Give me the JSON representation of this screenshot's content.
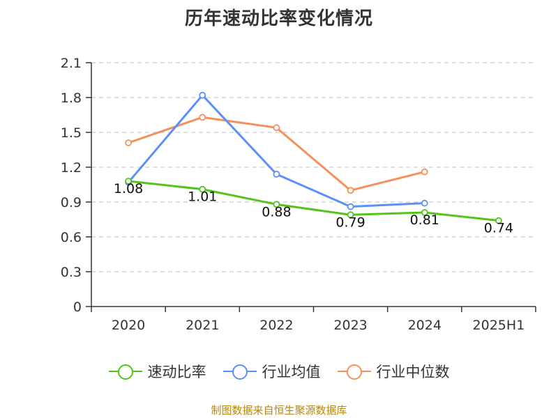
{
  "chart_data": {
    "type": "line",
    "title": "历年速动比率变化情况",
    "categories": [
      "2020",
      "2021",
      "2022",
      "2023",
      "2024",
      "2025H1"
    ],
    "series": [
      {
        "name": "速动比率",
        "color": "#52c41a",
        "values": [
          1.08,
          1.01,
          0.88,
          0.79,
          0.81,
          0.74
        ],
        "labels": [
          "1.08",
          "1.01",
          "0.88",
          "0.79",
          "0.81",
          "0.74"
        ]
      },
      {
        "name": "行业均值",
        "color": "#5b8ff9",
        "values": [
          1.07,
          1.82,
          1.14,
          0.86,
          0.89,
          null
        ]
      },
      {
        "name": "行业中位数",
        "color": "#f6905a",
        "values": [
          1.41,
          1.63,
          1.54,
          1.0,
          1.16,
          null
        ]
      }
    ],
    "ylim": [
      0,
      2.1
    ],
    "yticks": [
      "0",
      "0.3",
      "0.6",
      "0.9",
      "1.2",
      "1.5",
      "1.8",
      "2.1"
    ],
    "ytick_values": [
      0,
      0.3,
      0.6,
      0.9,
      1.2,
      1.5,
      1.8,
      2.1
    ],
    "grid": true,
    "legend_position": "bottom",
    "xlabel": "",
    "ylabel": ""
  },
  "source_text": "制图数据来自恒生聚源数据库"
}
